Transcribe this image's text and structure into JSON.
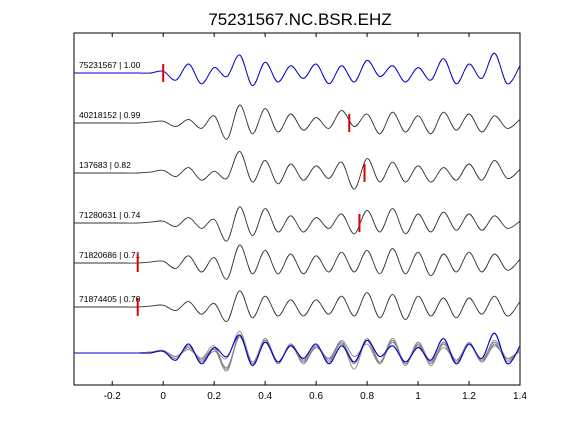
{
  "chart_data": {
    "type": "line",
    "title": "75231567.NC.BSR.EHZ",
    "xlabel": "",
    "ylabel": "",
    "xlim": [
      -0.35,
      1.4
    ],
    "xticks": [
      -0.2,
      0,
      0.2,
      0.4,
      0.6,
      0.8,
      1,
      1.2,
      1.4
    ],
    "xtick_labels": [
      "-0.2",
      "0",
      "0.2",
      "0.4",
      "0.6",
      "0.8",
      "1",
      "1.2",
      "1.4"
    ],
    "grid": false,
    "colors": {
      "reference": "#0000cc",
      "trace": "#333333",
      "overlay": "#888888",
      "pick": "#dd0000"
    },
    "series": [
      {
        "name": "75231567 | 1.00",
        "pick_time": 0.0,
        "color": "#0000cc",
        "x": [
          -0.35,
          -0.3,
          -0.25,
          -0.2,
          -0.15,
          -0.1,
          -0.05,
          0,
          0.05,
          0.1,
          0.15,
          0.2,
          0.25,
          0.3,
          0.35,
          0.4,
          0.45,
          0.5,
          0.55,
          0.6,
          0.65,
          0.7,
          0.75,
          0.8,
          0.85,
          0.9,
          0.95,
          1,
          1.05,
          1.1,
          1.15,
          1.2,
          1.25,
          1.3,
          1.35,
          1.4
        ],
        "values": [
          0,
          0,
          0,
          0,
          0,
          0,
          0,
          0.1,
          -0.4,
          0.5,
          -0.6,
          0.3,
          -0.2,
          1.0,
          -0.7,
          0.6,
          -0.5,
          0.4,
          -0.3,
          0.5,
          -0.6,
          0.4,
          -0.5,
          0.7,
          -0.2,
          0.4,
          -0.5,
          0.3,
          -0.4,
          0.8,
          -0.6,
          0.5,
          -0.3,
          1.1,
          -0.6,
          0.4
        ]
      },
      {
        "name": "40218152 | 0.99",
        "pick_time": 0.73,
        "color": "#333333",
        "x": [
          -0.35,
          -0.3,
          -0.25,
          -0.2,
          -0.15,
          -0.1,
          -0.05,
          0,
          0.05,
          0.1,
          0.15,
          0.2,
          0.25,
          0.3,
          0.35,
          0.4,
          0.45,
          0.5,
          0.55,
          0.6,
          0.65,
          0.7,
          0.75,
          0.8,
          0.85,
          0.9,
          0.95,
          1,
          1.05,
          1.1,
          1.15,
          1.2,
          1.25,
          1.3,
          1.35,
          1.4
        ],
        "values": [
          0,
          0,
          0,
          0,
          0,
          0,
          0.05,
          0.1,
          -0.2,
          0.2,
          -0.3,
          0.4,
          -0.9,
          1.0,
          -0.6,
          0.8,
          -0.5,
          0.5,
          -0.4,
          0.3,
          -0.3,
          0.7,
          -0.2,
          0.5,
          -0.6,
          0.6,
          -0.5,
          0.4,
          -0.6,
          0.6,
          -0.4,
          0.5,
          -0.5,
          0.4,
          -0.3,
          0.2
        ]
      },
      {
        "name": "137683 | 0.82",
        "pick_time": 0.79,
        "color": "#333333",
        "x": [
          -0.35,
          -0.3,
          -0.25,
          -0.2,
          -0.15,
          -0.1,
          -0.05,
          0,
          0.05,
          0.1,
          0.15,
          0.2,
          0.25,
          0.3,
          0.35,
          0.4,
          0.45,
          0.5,
          0.55,
          0.6,
          0.65,
          0.7,
          0.75,
          0.8,
          0.85,
          0.9,
          0.95,
          1,
          1.05,
          1.1,
          1.15,
          1.2,
          1.25,
          1.3,
          1.35,
          1.4
        ],
        "values": [
          0,
          0,
          0,
          0,
          0,
          0,
          0.05,
          0.15,
          -0.2,
          0.3,
          -0.4,
          0.1,
          -0.3,
          1.2,
          -0.5,
          0.7,
          -0.6,
          0.5,
          -0.4,
          0.4,
          -0.3,
          0.6,
          -0.9,
          0.8,
          -0.5,
          0.6,
          -0.5,
          0.4,
          -0.5,
          0.3,
          -0.4,
          0.5,
          -0.4,
          0.7,
          -0.3,
          0.2
        ]
      },
      {
        "name": "71280631 | 0.74",
        "pick_time": 0.77,
        "color": "#333333",
        "x": [
          -0.35,
          -0.3,
          -0.25,
          -0.2,
          -0.15,
          -0.1,
          -0.05,
          0,
          0.05,
          0.1,
          0.15,
          0.2,
          0.25,
          0.3,
          0.35,
          0.4,
          0.45,
          0.5,
          0.55,
          0.6,
          0.65,
          0.7,
          0.75,
          0.8,
          0.85,
          0.9,
          0.95,
          1,
          1.05,
          1.1,
          1.15,
          1.2,
          1.25,
          1.3,
          1.35,
          1.4
        ],
        "values": [
          0,
          0,
          0,
          0,
          0,
          0,
          0.05,
          0.1,
          -0.2,
          0.3,
          -0.3,
          0.2,
          -1.0,
          0.9,
          -0.7,
          0.8,
          -0.5,
          0.4,
          -0.5,
          0.3,
          -0.3,
          0.5,
          -0.6,
          0.7,
          -0.5,
          0.8,
          -0.6,
          0.5,
          -0.5,
          0.6,
          -0.4,
          0.5,
          -0.4,
          0.4,
          -0.3,
          0.1
        ]
      },
      {
        "name": "71820686 | 0.71",
        "pick_time": -0.1,
        "color": "#333333",
        "x": [
          -0.35,
          -0.3,
          -0.25,
          -0.2,
          -0.15,
          -0.1,
          -0.05,
          0,
          0.05,
          0.1,
          0.15,
          0.2,
          0.25,
          0.3,
          0.35,
          0.4,
          0.45,
          0.5,
          0.55,
          0.6,
          0.65,
          0.7,
          0.75,
          0.8,
          0.85,
          0.9,
          0.95,
          1,
          1.05,
          1.1,
          1.15,
          1.2,
          1.25,
          1.3,
          1.35,
          1.4
        ],
        "values": [
          0,
          0,
          0,
          0,
          0,
          0,
          0.05,
          0.1,
          -0.3,
          0.4,
          -0.5,
          0.3,
          -0.9,
          1.0,
          -0.6,
          0.7,
          -0.6,
          0.5,
          -0.6,
          0.4,
          -0.5,
          0.6,
          -0.5,
          0.7,
          -0.6,
          0.8,
          -0.6,
          0.6,
          -0.7,
          0.5,
          -0.5,
          0.6,
          -0.5,
          0.5,
          -0.4,
          0.2
        ]
      },
      {
        "name": "71874405 | 0.70",
        "pick_time": -0.1,
        "color": "#333333",
        "x": [
          -0.35,
          -0.3,
          -0.25,
          -0.2,
          -0.15,
          -0.1,
          -0.05,
          0,
          0.05,
          0.1,
          0.15,
          0.2,
          0.25,
          0.3,
          0.35,
          0.4,
          0.45,
          0.5,
          0.55,
          0.6,
          0.65,
          0.7,
          0.75,
          0.8,
          0.85,
          0.9,
          0.95,
          1,
          1.05,
          1.1,
          1.15,
          1.2,
          1.25,
          1.3,
          1.35,
          1.4
        ],
        "values": [
          0,
          0,
          0,
          0,
          0,
          0,
          0.05,
          0.1,
          -0.2,
          0.3,
          -0.4,
          0.2,
          -0.8,
          0.9,
          -0.6,
          0.6,
          -0.5,
          0.4,
          -0.5,
          0.4,
          -0.4,
          0.6,
          -0.5,
          0.8,
          -0.6,
          0.7,
          -0.7,
          0.6,
          -0.5,
          0.5,
          -0.6,
          0.5,
          -0.4,
          0.6,
          -0.5,
          0.3
        ]
      }
    ]
  }
}
